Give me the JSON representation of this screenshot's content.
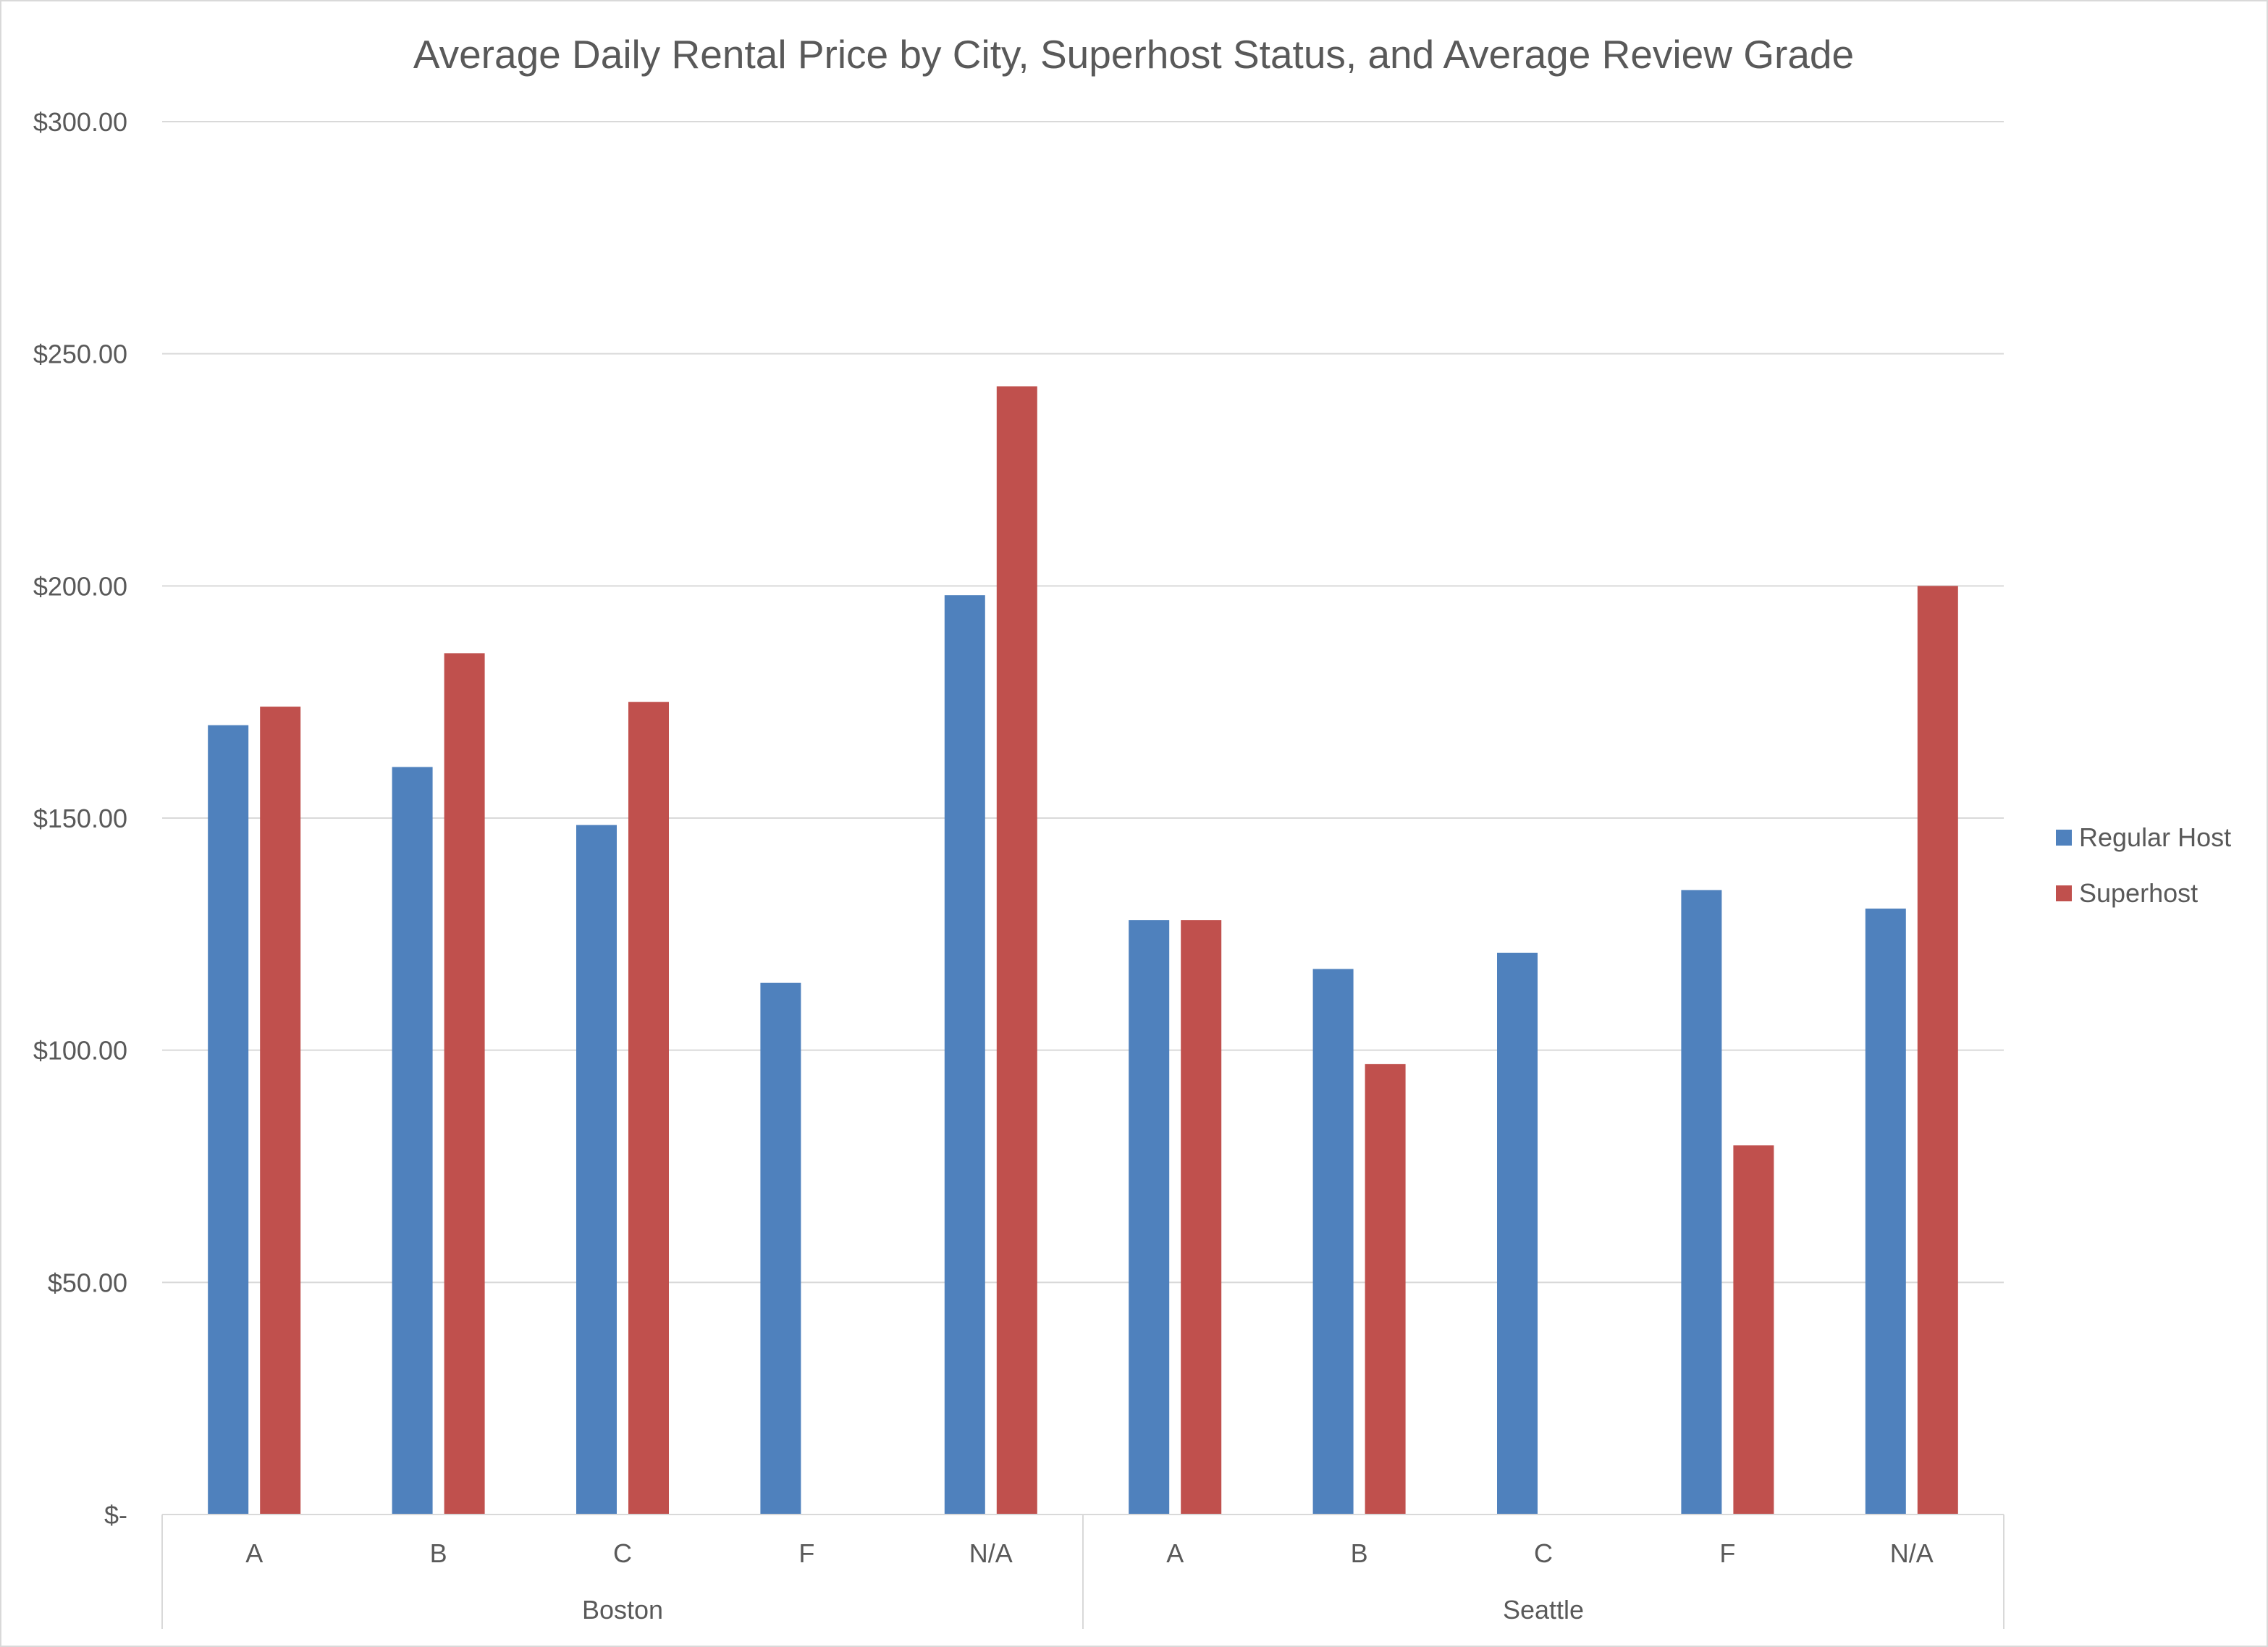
{
  "chart_data": {
    "type": "bar",
    "title": "Average Daily Rental Price by City, Superhost Status, and Average Review Grade",
    "xlabel": "",
    "ylabel": "",
    "ylim": [
      0,
      300
    ],
    "y_ticks": [
      {
        "value": 0,
        "label": "$-"
      },
      {
        "value": 50,
        "label": "$50.00"
      },
      {
        "value": 100,
        "label": "$100.00"
      },
      {
        "value": 150,
        "label": "$150.00"
      },
      {
        "value": 200,
        "label": "$200.00"
      },
      {
        "value": 250,
        "label": "$250.00"
      },
      {
        "value": 300,
        "label": "$300.00"
      }
    ],
    "grid": true,
    "legend_position": "right",
    "groups": [
      {
        "name": "Boston",
        "categories": [
          "A",
          "B",
          "C",
          "F",
          "N/A"
        ]
      },
      {
        "name": "Seattle",
        "categories": [
          "A",
          "B",
          "C",
          "F",
          "N/A"
        ]
      }
    ],
    "series": [
      {
        "name": "Regular Host",
        "color": "#4f81bd",
        "values": [
          170,
          161,
          148.5,
          114.5,
          198,
          128,
          117.5,
          121,
          134.5,
          130.5
        ]
      },
      {
        "name": "Superhost",
        "color": "#c0504d",
        "values": [
          174,
          185.5,
          175,
          null,
          243,
          128,
          97,
          null,
          79.5,
          200
        ]
      }
    ]
  }
}
